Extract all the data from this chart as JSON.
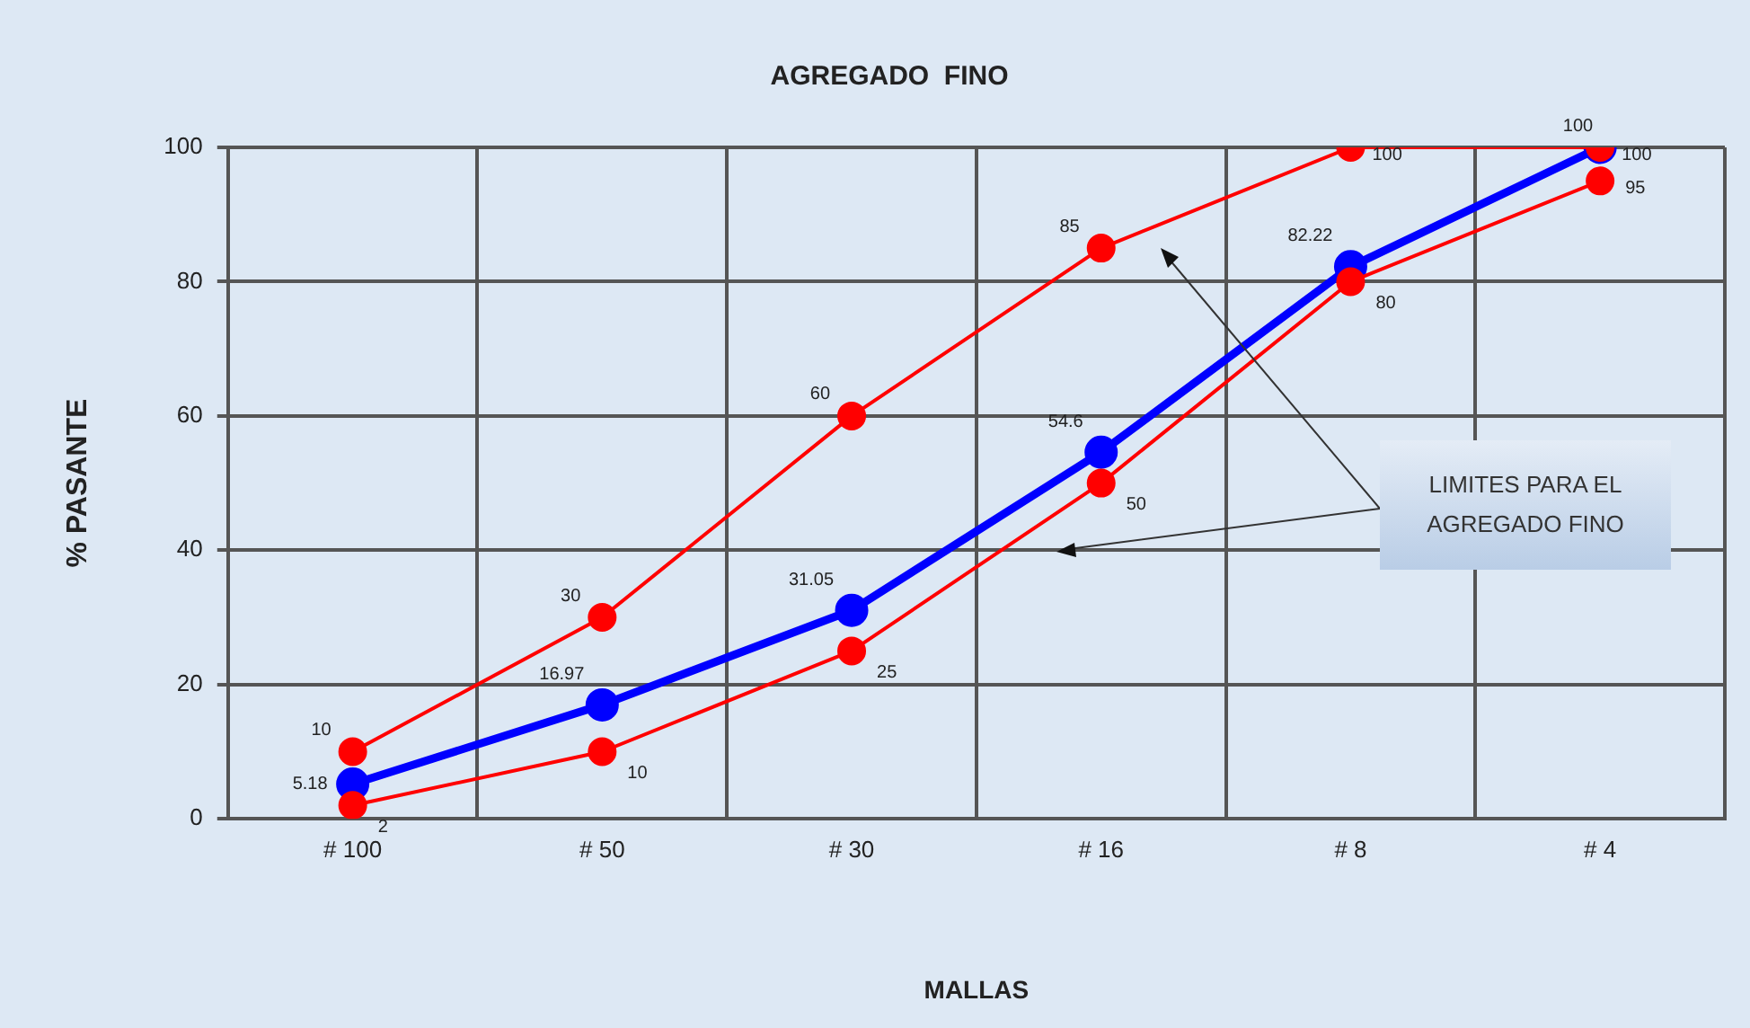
{
  "chart_data": {
    "type": "line",
    "title": "AGREGADO  FINO",
    "xlabel": "MALLAS",
    "ylabel": "% PASANTE",
    "categories": [
      "# 100",
      "# 50",
      "# 30",
      "# 16",
      "# 8",
      "# 4"
    ],
    "series": [
      {
        "color": "#ff0000",
        "values": [
          10,
          30,
          60,
          85,
          100,
          100
        ]
      },
      {
        "color": "#ff0000",
        "values": [
          2,
          10,
          25,
          50,
          80,
          95
        ]
      },
      {
        "color": "#0000ff",
        "values": [
          5.18,
          16.97,
          31.05,
          54.6,
          82.22,
          100
        ]
      }
    ],
    "ylim": [
      0,
      100
    ],
    "yticks": [
      0,
      20,
      40,
      60,
      80,
      100
    ],
    "grid": true,
    "legend": false,
    "marker": "circle",
    "line_style": "solid",
    "data_labels": true,
    "annotations": [
      "LIMITES PARA EL AGREGADO FINO"
    ]
  }
}
